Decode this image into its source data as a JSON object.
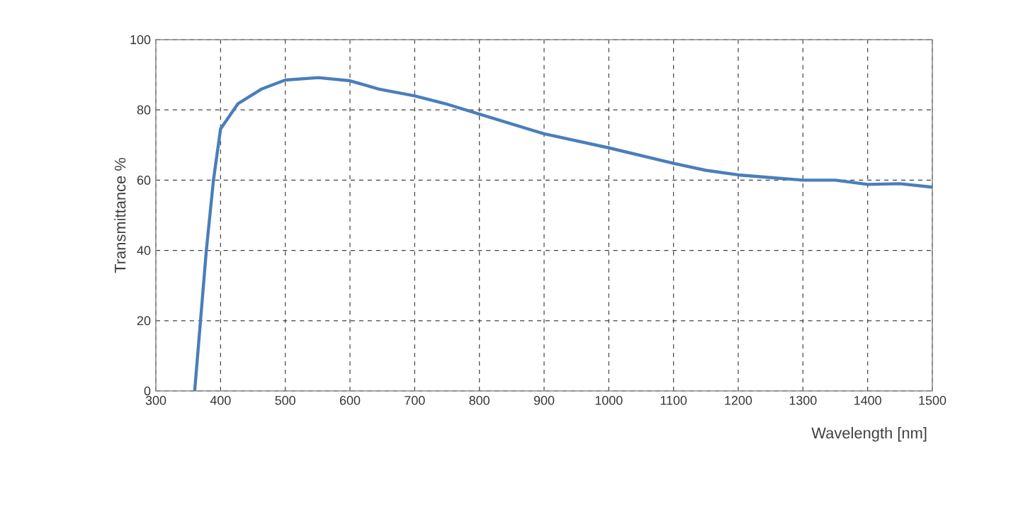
{
  "chart_data": {
    "type": "line",
    "xlabel": "Wavelength [nm]",
    "ylabel": "Transmittance %",
    "xlim": [
      300,
      1500
    ],
    "ylim": [
      0,
      100
    ],
    "xticks": [
      300,
      400,
      500,
      600,
      700,
      800,
      900,
      1000,
      1100,
      1200,
      1300,
      1400,
      1500
    ],
    "yticks": [
      0,
      20,
      40,
      60,
      80,
      100
    ],
    "grid": true,
    "marker": "none",
    "line_style": "solid",
    "series": [
      {
        "color": "#4a7ebb",
        "x": [
          360,
          369,
          378,
          389,
          400,
          427,
          464,
          500,
          551,
          600,
          645,
          700,
          747,
          800,
          900,
          1000,
          1100,
          1150,
          1200,
          1300,
          1350,
          1400,
          1450,
          1500
        ],
        "values": [
          0,
          20,
          40,
          60,
          74.6,
          81.8,
          86,
          88.5,
          89.2,
          88.3,
          85.9,
          84,
          81.8,
          78.8,
          73.2,
          69.2,
          64.8,
          62.8,
          61.5,
          60,
          60,
          58.8,
          59,
          58
        ]
      }
    ]
  }
}
